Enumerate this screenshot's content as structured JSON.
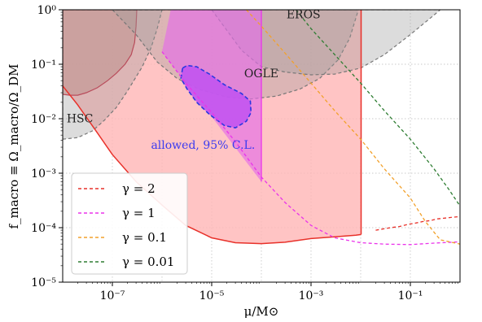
{
  "chart_data": {
    "type": "area",
    "title": "",
    "xlabel": "μ/M⊙",
    "ylabel": "f_macro ≡ Ω_macro/Ω_DM",
    "xscale": "log",
    "yscale": "log",
    "xlim": [
      1e-08,
      1.0
    ],
    "ylim": [
      1e-05,
      1.0
    ],
    "grid": true,
    "x_ticks": [
      {
        "value": 1e-07,
        "label": "10⁻⁷"
      },
      {
        "value": 1e-05,
        "label": "10⁻⁵"
      },
      {
        "value": 0.001,
        "label": "10⁻³"
      },
      {
        "value": 0.1,
        "label": "10⁻¹"
      }
    ],
    "y_ticks": [
      {
        "value": 1e-05,
        "label": "10⁻⁵"
      },
      {
        "value": 0.0001,
        "label": "10⁻⁴"
      },
      {
        "value": 0.001,
        "label": "10⁻³"
      },
      {
        "value": 0.01,
        "label": "10⁻²"
      },
      {
        "value": 0.1,
        "label": "10⁻¹"
      },
      {
        "value": 1,
        "label": "10⁰"
      }
    ],
    "legend": {
      "placement": "lower-left",
      "entries": [
        {
          "label": "γ = 2",
          "color": "#e8312a"
        },
        {
          "label": "γ = 1",
          "color": "#ea33ea"
        },
        {
          "label": "γ = 0.1",
          "color": "#f2a12b"
        },
        {
          "label": "γ = 0.01",
          "color": "#2e7d32"
        }
      ]
    },
    "annotations": [
      {
        "text": "EROS",
        "x": 0.00032,
        "y": 0.7,
        "color": "#222222"
      },
      {
        "text": "OGLE",
        "x": 4.5e-05,
        "y": 0.058,
        "color": "#222222"
      },
      {
        "text": "HSC",
        "x": 1.2e-08,
        "y": 0.0085,
        "color": "#222222"
      },
      {
        "text": "allowed,  95% C.L.",
        "x": 6e-07,
        "y": 0.0028,
        "color": "#3b3bf0"
      }
    ],
    "constraint_regions": [
      {
        "name": "HSC",
        "fill": "#dc9b96",
        "stroke": "#c9233a",
        "points": [
          [
            1e-08,
            0.028
          ],
          [
            1.4e-08,
            0.027
          ],
          [
            2e-08,
            0.027
          ],
          [
            3e-08,
            0.03
          ],
          [
            5e-08,
            0.037
          ],
          [
            8e-08,
            0.05
          ],
          [
            1.2e-07,
            0.068
          ],
          [
            1.8e-07,
            0.1
          ],
          [
            2.4e-07,
            0.15
          ],
          [
            2.8e-07,
            0.25
          ],
          [
            3e-07,
            0.5
          ],
          [
            3.1e-07,
            1.0
          ],
          [
            1e-08,
            1.0
          ]
        ]
      },
      {
        "name": "HSC upper",
        "fill": "#9a9a9a",
        "stroke": "#777777",
        "points": [
          [
            1e-08,
            0.0042
          ],
          [
            2e-08,
            0.0045
          ],
          [
            4e-08,
            0.006
          ],
          [
            7e-08,
            0.0095
          ],
          [
            1.2e-07,
            0.016
          ],
          [
            2e-07,
            0.032
          ],
          [
            4e-07,
            0.09
          ],
          [
            6e-07,
            0.2
          ],
          [
            8e-07,
            0.45
          ],
          [
            1e-06,
            1.0
          ],
          [
            1e-08,
            1.0
          ]
        ]
      },
      {
        "name": "OGLE",
        "fill": "#9a9a9a",
        "stroke": "#777777",
        "points": [
          [
            1e-07,
            1.0
          ],
          [
            3e-07,
            0.35
          ],
          [
            8e-07,
            0.11
          ],
          [
            2e-06,
            0.055
          ],
          [
            6e-06,
            0.034
          ],
          [
            2e-05,
            0.025
          ],
          [
            6e-05,
            0.023
          ],
          [
            0.0002,
            0.026
          ],
          [
            0.0006,
            0.035
          ],
          [
            0.0015,
            0.055
          ],
          [
            0.0035,
            0.12
          ],
          [
            0.006,
            0.3
          ],
          [
            0.009,
            1.0
          ]
        ]
      },
      {
        "name": "EROS",
        "fill": "#9a9a9a",
        "stroke": "#777777",
        "points": [
          [
            1e-05,
            1.0
          ],
          [
            4e-05,
            0.18
          ],
          [
            0.0001,
            0.09
          ],
          [
            0.0003,
            0.072
          ],
          [
            0.001,
            0.064
          ],
          [
            0.003,
            0.066
          ],
          [
            0.01,
            0.085
          ],
          [
            0.03,
            0.15
          ],
          [
            0.1,
            0.35
          ],
          [
            0.3,
            0.8
          ],
          [
            0.4,
            1.0
          ]
        ]
      }
    ],
    "gamma2_region": {
      "fill": "#ffb5b5",
      "stroke": "#e8312a",
      "lower": [
        [
          1e-08,
          0.04
        ],
        [
          2e-08,
          0.018
        ],
        [
          5e-08,
          0.0055
        ],
        [
          1e-07,
          0.0022
        ],
        [
          3e-07,
          0.0007
        ],
        [
          1e-06,
          0.00026
        ],
        [
          3e-06,
          0.00011
        ],
        [
          1e-05,
          6.5e-05
        ],
        [
          3e-05,
          5.3e-05
        ],
        [
          0.0001,
          5.1e-05
        ],
        [
          0.0003,
          5.4e-05
        ],
        [
          0.001,
          6.3e-05
        ],
        [
          0.003,
          6.8e-05
        ],
        [
          0.008,
          7.3e-05
        ],
        [
          0.0102,
          7.5e-05
        ]
      ],
      "cutoff_x": 0.0102
    },
    "allowed_region": {
      "fill": "#c254ef",
      "stroke": "#2a37e0",
      "points": [
        [
          2.6e-06,
          0.085
        ],
        [
          3.2e-06,
          0.095
        ],
        [
          5e-06,
          0.09
        ],
        [
          9e-06,
          0.066
        ],
        [
          1.8e-05,
          0.042
        ],
        [
          4e-05,
          0.029
        ],
        [
          6e-05,
          0.021
        ],
        [
          6.2e-05,
          0.013
        ],
        [
          5e-05,
          0.009
        ],
        [
          3e-05,
          0.0068
        ],
        [
          1.8e-05,
          0.0075
        ],
        [
          9e-06,
          0.012
        ],
        [
          5e-06,
          0.02
        ],
        [
          3.2e-06,
          0.035
        ],
        [
          2.4e-06,
          0.055
        ]
      ]
    },
    "gamma1_region": {
      "fill": "#e36de8",
      "points": [
        [
          1.5e-06,
          1.0
        ],
        [
          0.0001,
          1.0
        ],
        [
          0.0001,
          0.0007
        ],
        [
          1e-06,
          0.17
        ]
      ]
    },
    "series": [
      {
        "name": "γ = 2",
        "color": "#e8312a",
        "x": [
          0.02,
          0.04,
          0.06,
          0.09,
          0.12,
          0.18,
          0.25,
          0.35,
          0.5,
          0.7,
          1.0
        ],
        "y": [
          9e-05,
          0.0001,
          0.000105,
          0.000115,
          0.00012,
          0.00013,
          0.000135,
          0.000145,
          0.00015,
          0.000155,
          0.00016
        ]
      },
      {
        "name": "γ = 1",
        "color": "#ea33ea",
        "x": [
          1e-06,
          3e-06,
          1e-05,
          3e-05,
          0.0001,
          0.0003,
          0.001,
          0.003,
          0.01,
          0.03,
          0.1,
          0.3,
          1.0
        ],
        "y": [
          0.17,
          0.045,
          0.013,
          0.0038,
          0.00085,
          0.00029,
          0.00011,
          6.5e-05,
          5.3e-05,
          5e-05,
          4.9e-05,
          5.2e-05,
          5.5e-05
        ]
      },
      {
        "name": "γ = 0.1",
        "color": "#f2a12b",
        "x": [
          5e-05,
          0.0001,
          0.0003,
          0.001,
          0.003,
          0.01,
          0.03,
          0.1,
          0.2,
          0.4,
          1.0
        ],
        "y": [
          1.0,
          0.5,
          0.16,
          0.045,
          0.014,
          0.0042,
          0.0012,
          0.00035,
          0.00013,
          6e-05,
          5e-05
        ]
      },
      {
        "name": "γ = 0.01",
        "color": "#2e7d32",
        "x": [
          0.0005,
          0.001,
          0.003,
          0.01,
          0.03,
          0.1,
          0.3,
          0.6,
          1.0
        ],
        "y": [
          1.0,
          0.45,
          0.15,
          0.045,
          0.014,
          0.0042,
          0.0012,
          0.0005,
          0.00025
        ]
      }
    ]
  }
}
